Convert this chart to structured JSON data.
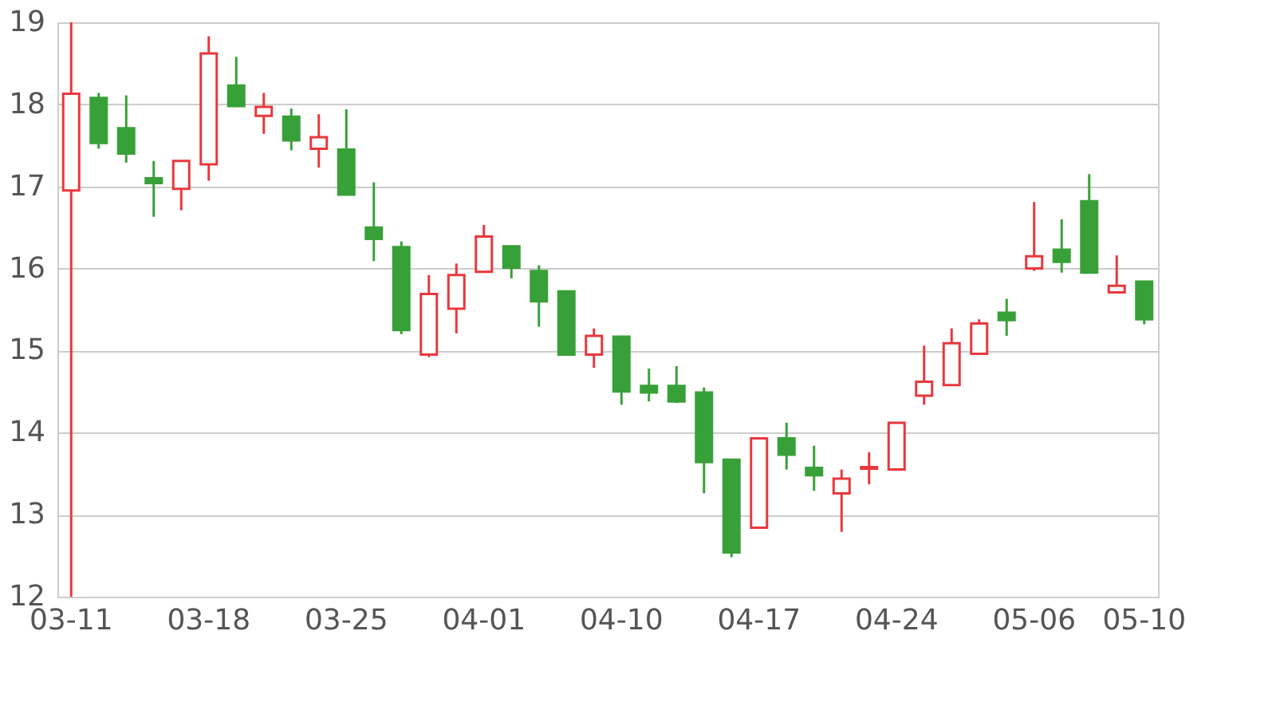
{
  "chart_data": {
    "type": "candlestick",
    "categories": [
      "03-11",
      null,
      null,
      null,
      null,
      "03-18",
      null,
      null,
      null,
      null,
      "03-25",
      null,
      null,
      null,
      null,
      "04-01",
      null,
      null,
      null,
      null,
      "04-10",
      null,
      null,
      null,
      null,
      "04-17",
      null,
      null,
      null,
      null,
      "04-24",
      null,
      null,
      null,
      null,
      "05-06",
      null,
      null,
      null,
      "05-10"
    ],
    "ohlc": [
      [
        16.95,
        19,
        12,
        18.13
      ],
      [
        18.08,
        18.14,
        17.46,
        17.53
      ],
      [
        17.71,
        18.11,
        17.29,
        17.4
      ],
      [
        17.1,
        17.31,
        16.63,
        17.04
      ],
      [
        16.97,
        17.31,
        16.71,
        17.31
      ],
      [
        17.27,
        18.83,
        17.07,
        18.62
      ],
      [
        18.23,
        18.58,
        17.98,
        17.98
      ],
      [
        17.86,
        18.14,
        17.64,
        17.97
      ],
      [
        17.85,
        17.95,
        17.44,
        17.56
      ],
      [
        17.46,
        17.88,
        17.23,
        17.6
      ],
      [
        17.45,
        17.94,
        16.9,
        16.9
      ],
      [
        16.5,
        17.05,
        16.09,
        16.36
      ],
      [
        16.26,
        16.33,
        15.2,
        15.25
      ],
      [
        14.95,
        15.92,
        14.92,
        15.69
      ],
      [
        15.51,
        16.06,
        15.21,
        15.92
      ],
      [
        15.96,
        16.53,
        15.96,
        16.39
      ],
      [
        16.27,
        16.27,
        15.88,
        16.01
      ],
      [
        15.97,
        16.04,
        15.29,
        15.6
      ],
      [
        15.72,
        15.72,
        14.94,
        14.95
      ],
      [
        14.95,
        15.27,
        14.79,
        15.18
      ],
      [
        15.17,
        15.17,
        14.34,
        14.5
      ],
      [
        14.57,
        14.78,
        14.38,
        14.49
      ],
      [
        14.57,
        14.81,
        14.36,
        14.38
      ],
      [
        14.49,
        14.55,
        13.26,
        13.64
      ],
      [
        13.67,
        13.67,
        12.48,
        12.54
      ],
      [
        12.84,
        13.94,
        12.84,
        13.93
      ],
      [
        13.93,
        14.12,
        13.55,
        13.73
      ],
      [
        13.57,
        13.84,
        13.29,
        13.48
      ],
      [
        13.26,
        13.55,
        12.79,
        13.44
      ],
      [
        13.56,
        13.76,
        13.37,
        13.58
      ],
      [
        13.55,
        14.12,
        13.55,
        14.12
      ],
      [
        14.45,
        15.06,
        14.34,
        14.62
      ],
      [
        14.58,
        15.27,
        14.58,
        15.09
      ],
      [
        14.96,
        15.38,
        14.96,
        15.33
      ],
      [
        15.46,
        15.63,
        15.18,
        15.37
      ],
      [
        16.0,
        16.81,
        15.97,
        16.15
      ],
      [
        16.23,
        16.6,
        15.95,
        16.08
      ],
      [
        16.82,
        17.15,
        15.95,
        15.95
      ],
      [
        15.71,
        16.16,
        15.71,
        15.79
      ],
      [
        15.84,
        15.84,
        15.32,
        15.38
      ]
    ],
    "colors": [
      "#e8383d",
      "#38a038",
      "#38a038",
      "#38a038",
      "#e8383d",
      "#e8383d",
      "#38a038",
      "#e8383d",
      "#38a038",
      "#e8383d",
      "#38a038",
      "#38a038",
      "#38a038",
      "#e8383d",
      "#e8383d",
      "#e8383d",
      "#38a038",
      "#38a038",
      "#38a038",
      "#e8383d",
      "#38a038",
      "#38a038",
      "#38a038",
      "#38a038",
      "#38a038",
      "#e8383d",
      "#38a038",
      "#38a038",
      "#e8383d",
      "#e8383d",
      "#e8383d",
      "#e8383d",
      "#e8383d",
      "#e8383d",
      "#38a038",
      "#e8383d",
      "#38a038",
      "#38a038",
      "#e8383d",
      "#38a038"
    ],
    "ylim": [
      12,
      19
    ],
    "yticks": [
      12,
      13,
      14,
      15,
      16,
      17,
      18,
      19
    ],
    "grid": "y"
  }
}
